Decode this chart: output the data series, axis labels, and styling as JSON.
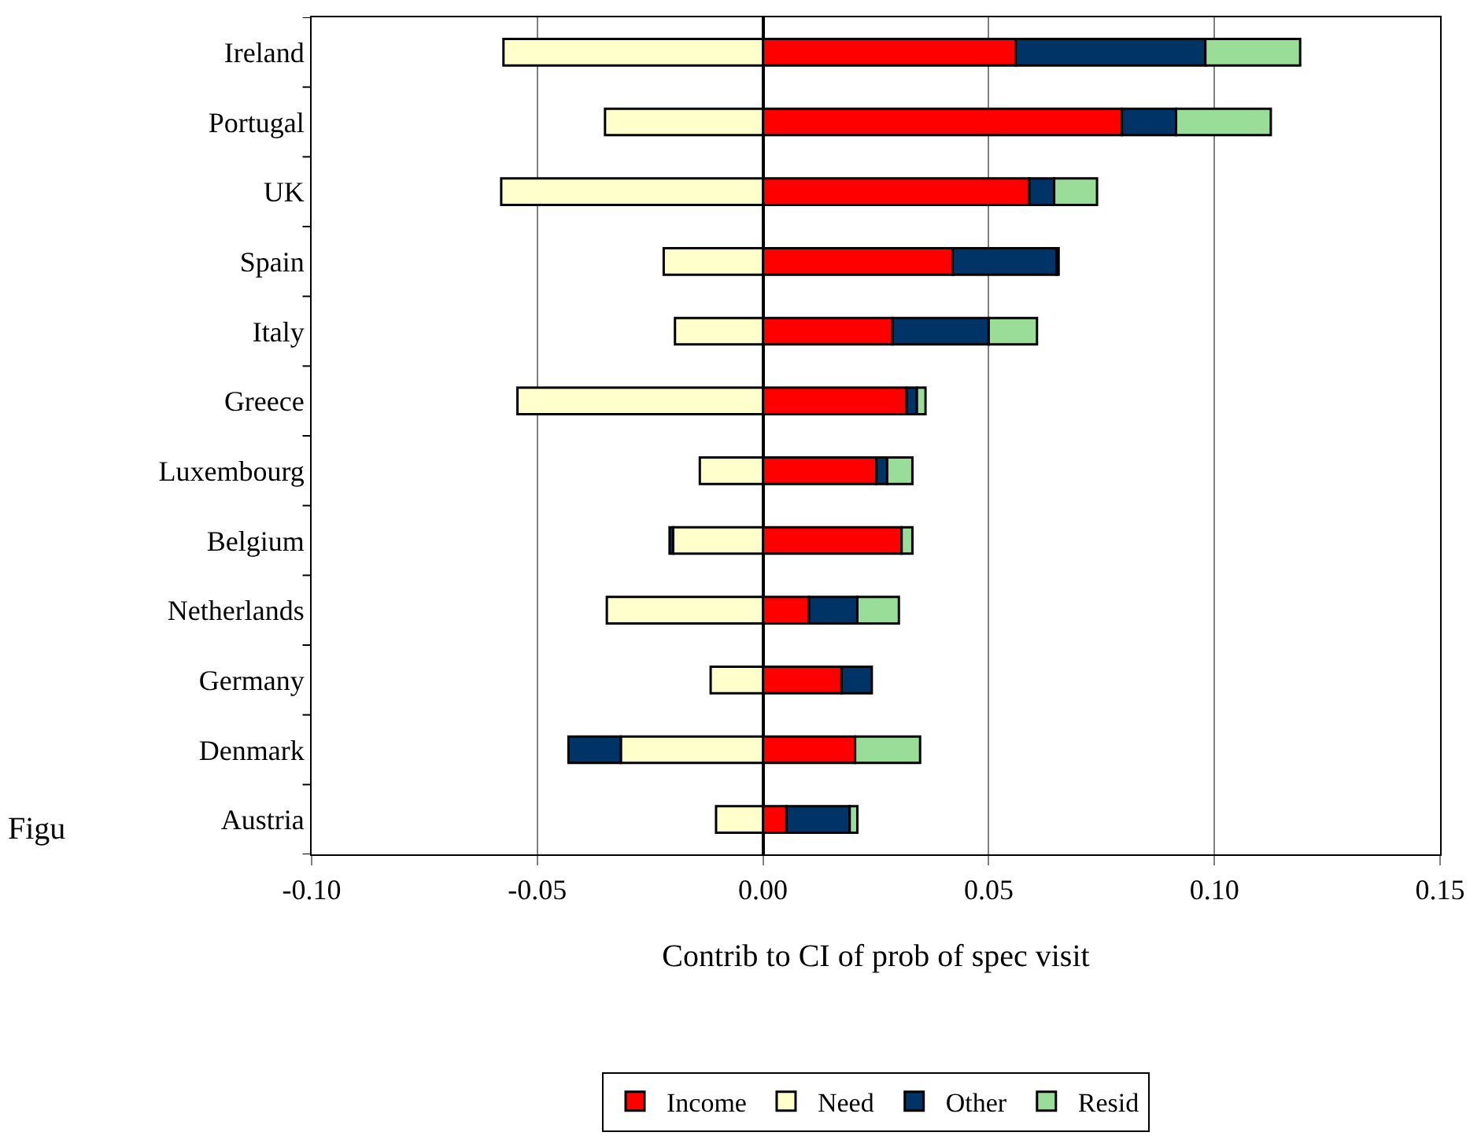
{
  "chart_data": {
    "type": "bar",
    "orientation": "horizontal",
    "stacked": true,
    "xlabel": "Contrib to CI of prob of spec visit",
    "categories": [
      "Ireland",
      "Portugal",
      "UK",
      "Spain",
      "Italy",
      "Greece",
      "Luxembourg",
      "Belgium",
      "Netherlands",
      "Germany",
      "Denmark",
      "Austria"
    ],
    "series": [
      {
        "name": "Income",
        "color": "#ff0000",
        "values": [
          0.056,
          0.0795,
          0.059,
          0.042,
          0.0287,
          0.0318,
          0.0251,
          0.0307,
          0.0102,
          0.0174,
          0.0204,
          0.0052
        ]
      },
      {
        "name": "Need",
        "color": "#ffffcc",
        "values": [
          -0.0575,
          -0.035,
          -0.058,
          -0.022,
          -0.0195,
          -0.0544,
          -0.014,
          -0.0199,
          -0.0346,
          -0.0116,
          -0.0315,
          -0.0104
        ]
      },
      {
        "name": "Other",
        "color": "#003366",
        "values": [
          0.042,
          0.012,
          0.0055,
          0.023,
          0.0213,
          0.0023,
          0.0024,
          -0.0008,
          0.0107,
          0.0067,
          -0.0116,
          0.014
        ]
      },
      {
        "name": "Resid",
        "color": "#99dd99",
        "values": [
          0.021,
          0.021,
          0.0095,
          0.0005,
          0.0107,
          0.0019,
          0.0056,
          0.0024,
          0.0092,
          null,
          0.0144,
          0.0017
        ]
      }
    ],
    "xlim": [
      -0.1,
      0.15
    ],
    "xticks": [
      {
        "value": -0.1,
        "label": "-0.10"
      },
      {
        "value": -0.05,
        "label": "-0.05"
      },
      {
        "value": 0,
        "label": "0.00"
      },
      {
        "value": 0.05,
        "label": "0.05"
      },
      {
        "value": 0.1,
        "label": "0.10"
      },
      {
        "value": 0.15,
        "label": "0.15"
      }
    ],
    "grid": "x",
    "legend": "bottom",
    "annotations": [
      "Figu"
    ]
  }
}
